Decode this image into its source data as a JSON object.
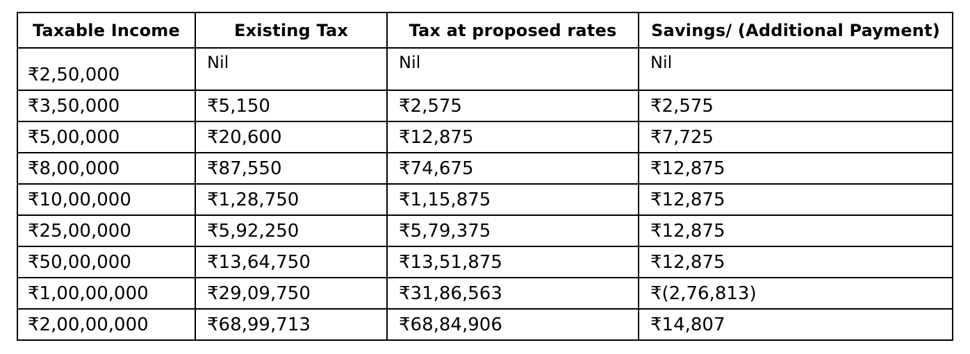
{
  "table": {
    "headers": [
      "Taxable Income",
      "Existing Tax",
      "Tax at proposed rates",
      "Savings/ (Additional Payment)"
    ],
    "rows": [
      [
        "₹2,50,000",
        "Nil",
        "Nil",
        "Nil"
      ],
      [
        "₹3,50,000",
        "₹5,150",
        "₹2,575",
        "₹2,575"
      ],
      [
        "₹5,00,000",
        "₹20,600",
        "₹12,875",
        "₹7,725"
      ],
      [
        "₹8,00,000",
        "₹87,550",
        "₹74,675",
        "₹12,875"
      ],
      [
        "₹10,00,000",
        "₹1,28,750",
        "₹1,15,875",
        "₹12,875"
      ],
      [
        "₹25,00,000",
        "₹5,92,250",
        "₹5,79,375",
        "₹12,875"
      ],
      [
        "₹50,00,000",
        "₹13,64,750",
        "₹13,51,875",
        "₹12,875"
      ],
      [
        "₹1,00,00,000",
        "₹29,09,750",
        "₹31,86,563",
        "₹(2,76,813)"
      ],
      [
        "₹2,00,00,000",
        "₹68,99,713",
        "₹68,84,906",
        "₹14,807"
      ]
    ]
  }
}
